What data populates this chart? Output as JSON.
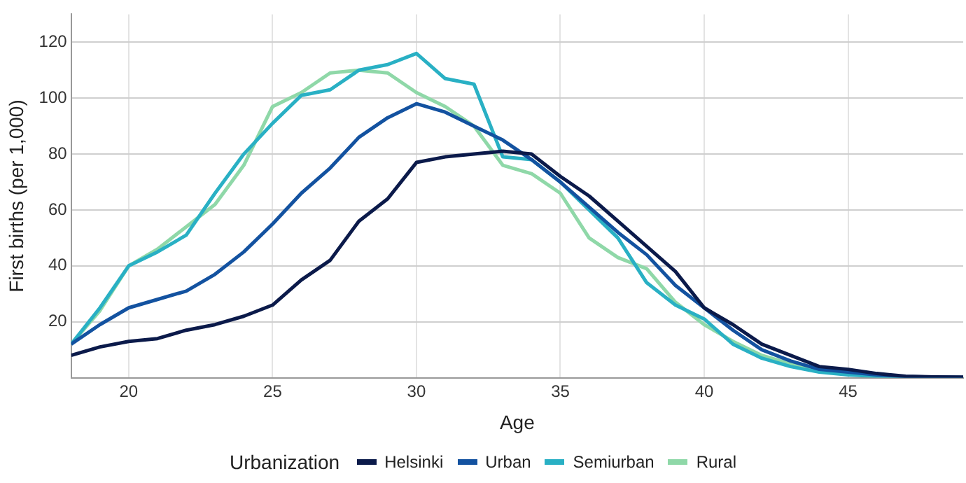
{
  "chart_data": {
    "type": "line",
    "xlabel": "Age",
    "ylabel": "First births (per 1,000)",
    "legend_title": "Urbanization",
    "legend": "bottom",
    "grid": true,
    "marker": "none",
    "line_style": "solid",
    "x": [
      18,
      19,
      20,
      21,
      22,
      23,
      24,
      25,
      26,
      27,
      28,
      29,
      30,
      31,
      32,
      33,
      34,
      35,
      36,
      37,
      38,
      39,
      40,
      41,
      42,
      43,
      44,
      45,
      46,
      47,
      48,
      49
    ],
    "xlim": [
      18,
      49
    ],
    "xticks": [
      20,
      25,
      30,
      35,
      40,
      45
    ],
    "ylim": [
      0,
      130
    ],
    "yticks": [
      20,
      40,
      60,
      80,
      100,
      120
    ],
    "series": [
      {
        "name": "Helsinki",
        "color": "#0b1a4a",
        "values": [
          8,
          11,
          13,
          14,
          17,
          19,
          22,
          26,
          35,
          42,
          56,
          64,
          77,
          79,
          80,
          81,
          80,
          72,
          65,
          56,
          47,
          38,
          25,
          19,
          12,
          8,
          4,
          3,
          1.5,
          0.5,
          0.3,
          0.2
        ]
      },
      {
        "name": "Urban",
        "color": "#1352a0",
        "values": [
          12,
          19,
          25,
          28,
          31,
          37,
          45,
          55,
          66,
          75,
          86,
          93,
          98,
          95,
          90,
          85,
          78,
          70,
          61,
          52,
          44,
          33,
          25,
          17,
          10,
          6,
          3,
          2,
          1,
          0.4,
          0.2,
          0.1
        ]
      },
      {
        "name": "Semiurban",
        "color": "#29b0c4",
        "values": [
          12,
          25,
          40,
          45,
          51,
          66,
          80,
          91,
          101,
          103,
          110,
          112,
          116,
          107,
          105,
          79,
          78,
          70,
          60,
          50,
          34,
          26,
          21,
          12,
          7,
          4,
          2,
          1,
          0.5,
          0.2,
          0.1,
          0.1
        ]
      },
      {
        "name": "Rural",
        "color": "#8fd8a8",
        "values": [
          12,
          24,
          40,
          46,
          54,
          62,
          76,
          97,
          102,
          109,
          110,
          109,
          102,
          97,
          90,
          76,
          73,
          66,
          50,
          43,
          39,
          27,
          19,
          13,
          8,
          5,
          2.5,
          1.5,
          0.7,
          0.3,
          null,
          null
        ]
      }
    ]
  }
}
